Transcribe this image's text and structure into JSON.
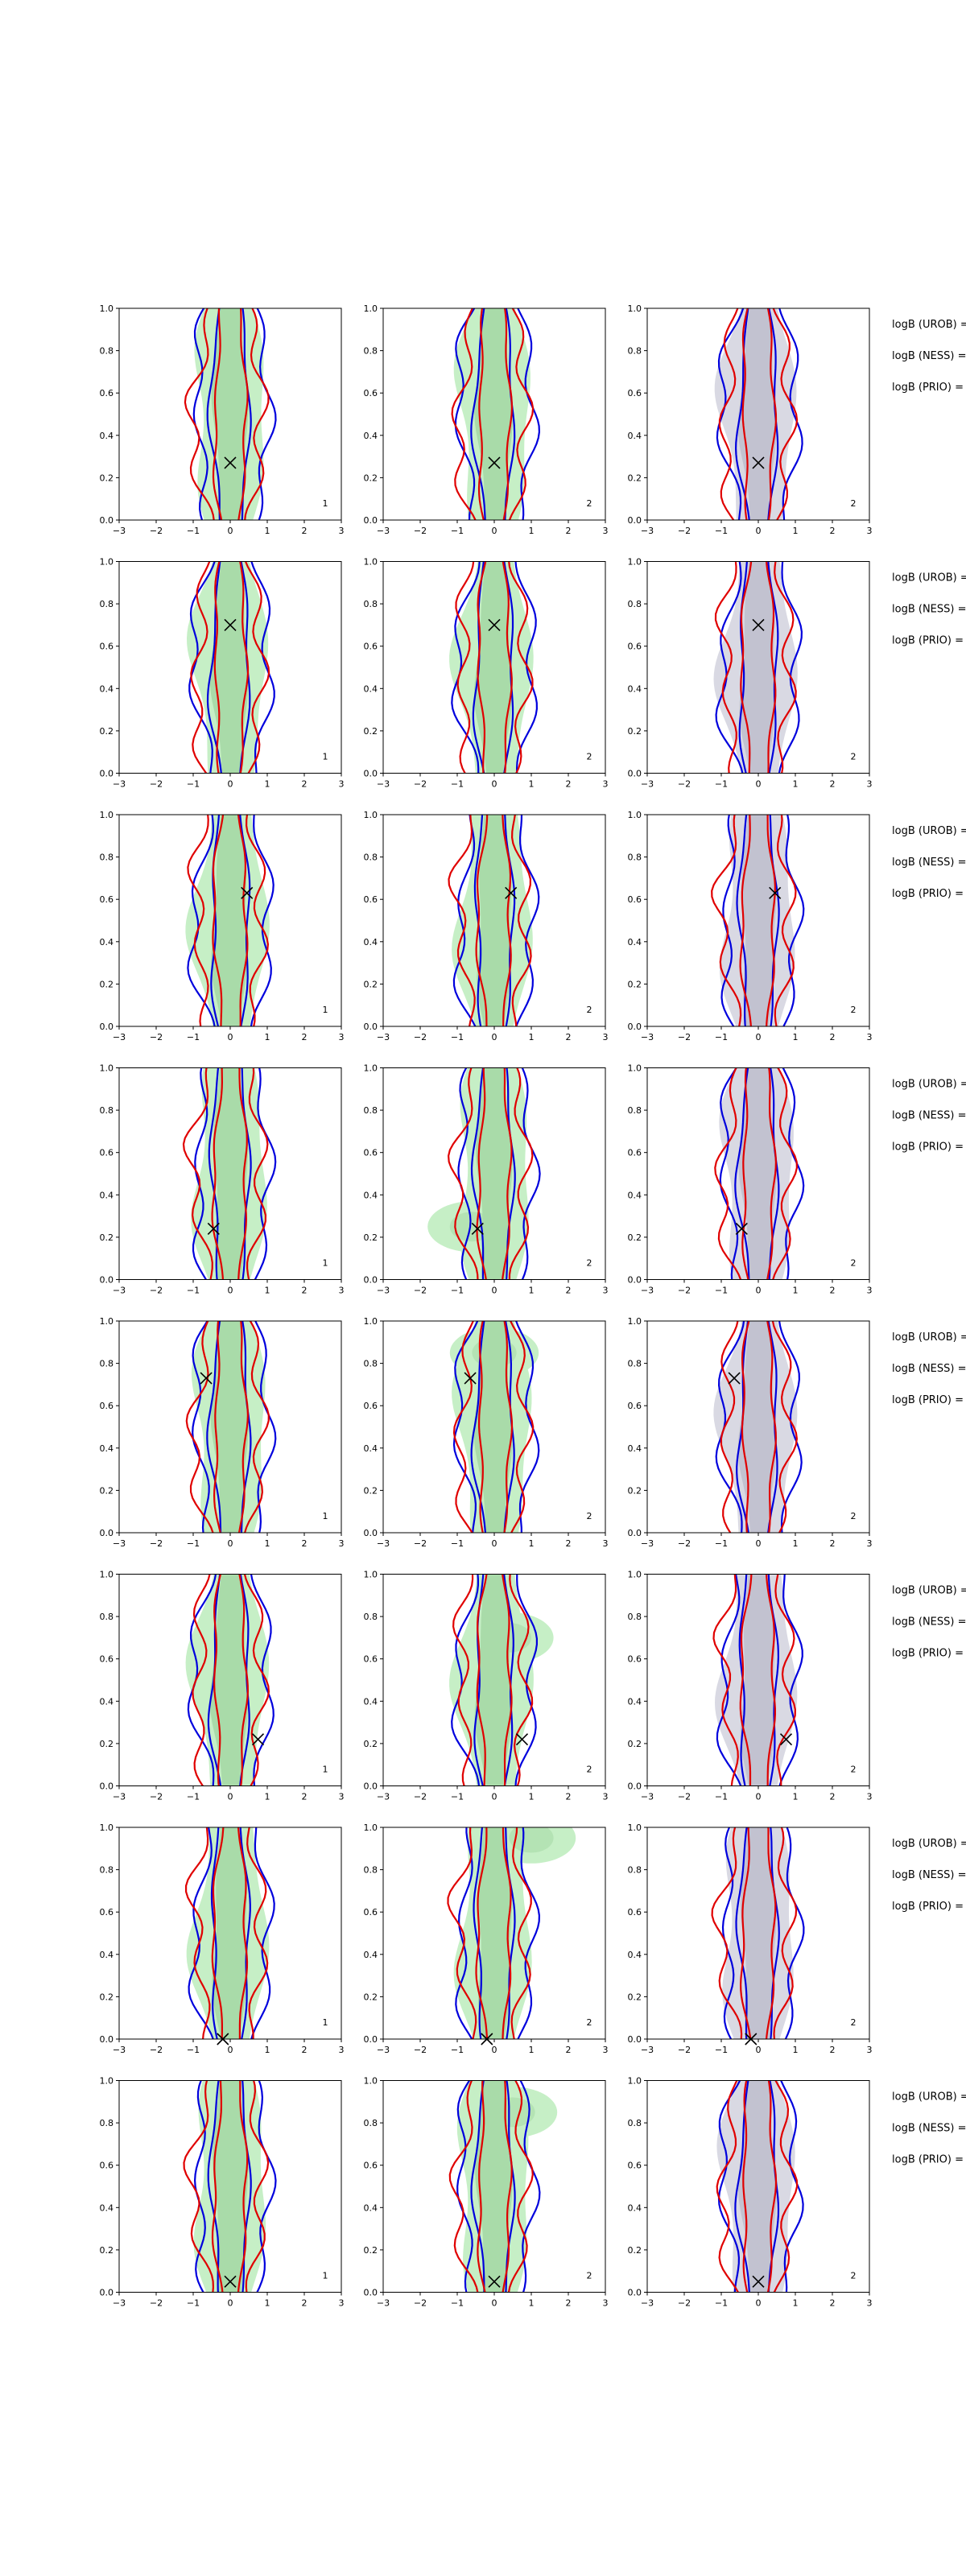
{
  "chart_data": {
    "type": "contour",
    "layout": {
      "rows": 8,
      "cols": 3
    },
    "x_ticks": [
      "−3",
      "−2",
      "−1",
      "0",
      "1",
      "2",
      "3"
    ],
    "y_ticks": [
      "0.0",
      "0.2",
      "0.4",
      "0.6",
      "0.8",
      "1.0"
    ],
    "xlim": [
      -3,
      3
    ],
    "ylim": [
      0,
      1
    ],
    "colors": {
      "filled_green": "#c6efc6",
      "filled_green_dark": "#a9dba9",
      "filled_gray": "#d9d9e3",
      "filled_gray_dark": "#c2c2d0",
      "blue_contour": "#0000dd",
      "red_contour": "#e00000",
      "marker": "#000000"
    },
    "stat_labels": [
      "logB (UROB) =",
      "logB (NESS) =",
      "logB (PRIO) ="
    ],
    "rows": [
      {
        "marker": [
          0.0,
          0.27
        ],
        "tags": [
          "1",
          "2",
          "2"
        ],
        "greenLobe": null
      },
      {
        "marker": [
          0.0,
          0.7
        ],
        "tags": [
          "1",
          "2",
          "2"
        ],
        "greenLobe": null
      },
      {
        "marker": [
          0.45,
          0.63
        ],
        "tags": [
          "1",
          "2",
          "2"
        ],
        "greenLobe": null
      },
      {
        "marker": [
          -0.45,
          0.24
        ],
        "tags": [
          "1",
          "2",
          "2"
        ],
        "greenLobe": [
          -0.6,
          0.25
        ]
      },
      {
        "marker": [
          -0.65,
          0.73
        ],
        "tags": [
          "1",
          "2",
          "2"
        ],
        "greenLobe": [
          0.0,
          0.85
        ]
      },
      {
        "marker": [
          0.75,
          0.22
        ],
        "tags": [
          "1",
          "2",
          "2"
        ],
        "greenLobe": [
          0.4,
          0.7
        ]
      },
      {
        "marker": [
          -0.2,
          0.0
        ],
        "tags": [
          "1",
          "2",
          "2"
        ],
        "greenLobe": [
          1.0,
          0.95
        ]
      },
      {
        "marker": [
          0.0,
          0.05
        ],
        "tags": [
          "1",
          "2",
          "2"
        ],
        "greenLobe": [
          0.5,
          0.85
        ]
      }
    ]
  }
}
